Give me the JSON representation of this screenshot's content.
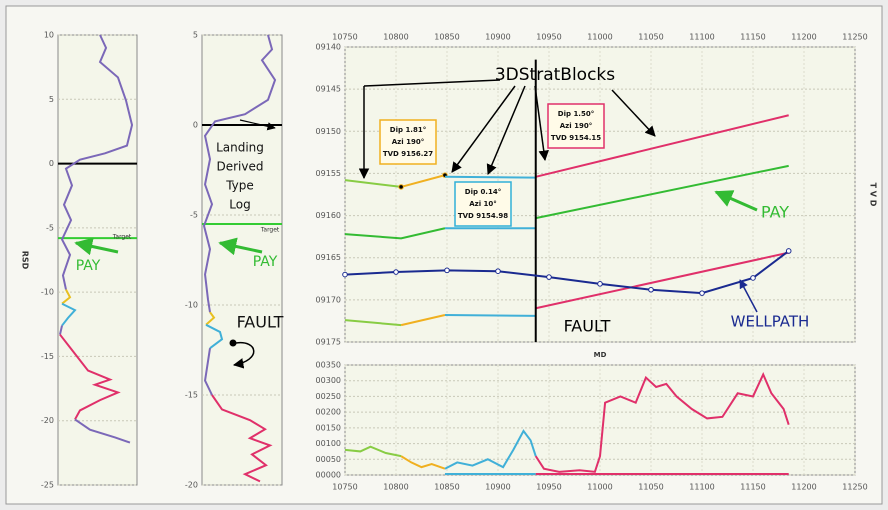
{
  "chart_data": [
    {
      "type": "line",
      "ylabel": "RSD",
      "xlim": [
        0,
        100
      ],
      "ylim": [
        -25,
        10
      ],
      "yticks": [
        10,
        5,
        0,
        -5,
        -10,
        -15,
        -20,
        -25
      ],
      "grid": true,
      "hlines": [
        {
          "value": 0,
          "color": "#000000"
        },
        {
          "value": -5.8,
          "color": "#33cc33"
        }
      ],
      "annotations": [
        {
          "text": "Target",
          "color": "#333333"
        },
        {
          "text": "PAY",
          "color": "#33bb33"
        }
      ],
      "series": [
        {
          "color": "#7b68b8",
          "x": [
            53.2,
            60.8,
            53.2,
            75.9,
            86.1,
            93.7,
            87.3,
            59.5,
            27.8,
            10.1,
            17.7,
            7.6,
            16.5,
            5.1,
            15.2,
            6.3,
            10.1
          ],
          "values": [
            10,
            9.0,
            7.9,
            6.7,
            4.9,
            3.0,
            1.4,
            0.8,
            0.3,
            -0.4,
            -1.7,
            -3.2,
            -4.4,
            -5.9,
            -7.1,
            -8.7,
            -9.8
          ]
        },
        {
          "color": "#e8c020",
          "x": [
            10.1,
            15.2,
            5.1
          ],
          "values": [
            -9.8,
            -10.4,
            -10.9
          ]
        },
        {
          "color": "#40b0d8",
          "x": [
            5.1,
            21.5,
            12.7,
            5.1
          ],
          "values": [
            -10.9,
            -11.4,
            -12.0,
            -12.6
          ]
        },
        {
          "color": "#7b68b8",
          "x": [
            5.1,
            2.5
          ],
          "values": [
            -12.6,
            -13.3
          ]
        },
        {
          "color": "#e0306a",
          "x": [
            2.5,
            17.7,
            38,
            65.8,
            46.8,
            75.9,
            53.2,
            27.8,
            21.5
          ],
          "values": [
            -13.3,
            -14.5,
            -16.1,
            -16.8,
            -17.2,
            -17.8,
            -18.4,
            -19.2,
            -19.9
          ]
        },
        {
          "color": "#7b68b8",
          "x": [
            21.5,
            40.5,
            72.2,
            91.1
          ],
          "values": [
            -19.9,
            -20.7,
            -21.3,
            -21.7
          ]
        }
      ]
    },
    {
      "type": "line",
      "xlim": [
        0,
        100
      ],
      "ylim": [
        -20,
        5
      ],
      "yticks": [
        5,
        0,
        -5,
        -10,
        -15,
        -20
      ],
      "grid": true,
      "hlines": [
        {
          "value": 0,
          "color": "#000000"
        },
        {
          "value": -5.5,
          "color": "#33cc33"
        }
      ],
      "annotations": [
        {
          "text": "Target",
          "color": "#333333"
        },
        {
          "text": "PAY",
          "color": "#33bb33"
        },
        {
          "text": "Landing",
          "color": "#111111"
        },
        {
          "text": "Derived",
          "color": "#111111"
        },
        {
          "text": "Type",
          "color": "#111111"
        },
        {
          "text": "Log",
          "color": "#111111"
        },
        {
          "text": "FAULT",
          "color": "#111111"
        }
      ],
      "series": [
        {
          "color": "#7b68b8",
          "x": [
            82.5,
            87.5,
            75,
            91.3,
            82.5,
            53.8,
            16.3,
            3.8,
            10,
            3.8,
            12.5,
            2.5,
            10,
            3.8,
            7.5,
            10
          ],
          "values": [
            5,
            4.2,
            3.6,
            2.5,
            1.4,
            0.6,
            0.2,
            -0.6,
            -1.9,
            -3.3,
            -4.4,
            -5.6,
            -6.9,
            -8.3,
            -9.7,
            -10.4
          ]
        },
        {
          "color": "#e8c020",
          "x": [
            10,
            15,
            5
          ],
          "values": [
            -10.4,
            -10.7,
            -11.1
          ]
        },
        {
          "color": "#40b0d8",
          "x": [
            5,
            22.5,
            25,
            10
          ],
          "values": [
            -11.1,
            -11.5,
            -11.9,
            -12.4
          ]
        },
        {
          "color": "#7b68b8",
          "x": [
            10,
            3.8,
            12.5
          ],
          "values": [
            -12.4,
            -14.2,
            -15
          ]
        },
        {
          "color": "#e0306a",
          "x": [
            12.5,
            25,
            60,
            78.8,
            60,
            85,
            62.5,
            80,
            53.8,
            72.5
          ],
          "values": [
            -15,
            -15.8,
            -16.4,
            -16.9,
            -17.4,
            -17.8,
            -18.3,
            -18.9,
            -19.4,
            -19.8
          ]
        }
      ]
    },
    {
      "type": "line",
      "ylabel": "T V D",
      "xlabel": "MD",
      "xtick_position": "top",
      "y_inverted": true,
      "grid": true,
      "xlim": [
        10750,
        11250
      ],
      "xticks": [
        10750,
        10800,
        10850,
        10900,
        10950,
        11000,
        11050,
        11100,
        11150,
        11200,
        11250
      ],
      "ylim": [
        9140,
        9175
      ],
      "yticks": [
        {
          "value": 9140,
          "label": "09140"
        },
        {
          "value": 9145,
          "label": "09145"
        },
        {
          "value": 9150,
          "label": "09150"
        },
        {
          "value": 9155,
          "label": "09155"
        },
        {
          "value": 9160,
          "label": "09160"
        },
        {
          "value": 9165,
          "label": "09165"
        },
        {
          "value": 9170,
          "label": "09170"
        },
        {
          "value": 9175,
          "label": "09175"
        }
      ],
      "annotations": [
        {
          "text": "3DStratBlocks",
          "color": "#000000"
        },
        {
          "text": "PAY",
          "color": "#33bb33"
        },
        {
          "text": "FAULT",
          "color": "#000000"
        },
        {
          "text": "WELLPATH",
          "color": "#1a2a90"
        }
      ],
      "boxes": [
        {
          "color": "#f0b020",
          "lines": [
            "Dip 1.81°",
            "Azi 190°",
            "TVD 9156.27"
          ]
        },
        {
          "color": "#30b0d8",
          "lines": [
            "Dip 0.14°",
            "Azi 10°",
            "TVD 9154.98"
          ]
        },
        {
          "color": "#e0306a",
          "lines": [
            "Dip 1.50°",
            "Azi 190°",
            "TVD 9154.15"
          ]
        }
      ],
      "series": [
        {
          "color": "#88cc44",
          "x": [
            10750,
            10805
          ],
          "values": [
            9155.8,
            9156.6
          ]
        },
        {
          "color": "#f0b020",
          "x": [
            10805,
            10848
          ],
          "values": [
            9156.6,
            9155.2
          ],
          "markers": true,
          "marker_color": "#000000"
        },
        {
          "color": "#40b0d8",
          "x": [
            10848,
            10937
          ],
          "values": [
            9155.4,
            9155.5
          ]
        },
        {
          "color": "#e0306a",
          "x": [
            10937,
            11185
          ],
          "values": [
            9155.4,
            9148.1
          ]
        },
        {
          "color": "#33bb33",
          "x": [
            10750,
            10805,
            10848
          ],
          "values": [
            9162.2,
            9162.7,
            9161.5
          ]
        },
        {
          "color": "#40b0d8",
          "x": [
            10848,
            10937
          ],
          "values": [
            9161.5,
            9161.5
          ]
        },
        {
          "color": "#33bb33",
          "x": [
            10937,
            11185
          ],
          "values": [
            9160.3,
            9154.1
          ]
        },
        {
          "color": "#88cc44",
          "x": [
            10750,
            10805
          ],
          "values": [
            9172.4,
            9173
          ]
        },
        {
          "color": "#f0b020",
          "x": [
            10805,
            10848
          ],
          "values": [
            9173,
            9171.8
          ]
        },
        {
          "color": "#40b0d8",
          "x": [
            10848,
            10937
          ],
          "values": [
            9171.8,
            9171.9
          ]
        },
        {
          "color": "#e0306a",
          "x": [
            10937,
            11185
          ],
          "values": [
            9171,
            9164.4
          ]
        },
        {
          "color": "#000000",
          "x": [
            10937,
            10937
          ],
          "values": [
            9141.5,
            9175
          ]
        },
        {
          "color": "#1a2a90",
          "x": [
            10750,
            10800,
            10850,
            10900,
            10950,
            11000,
            11050,
            11100,
            11150,
            11185
          ],
          "values": [
            9167,
            9166.7,
            9166.5,
            9166.6,
            9167.3,
            9168.1,
            9168.8,
            9169.2,
            9167.4,
            9164.2
          ],
          "markers": true,
          "marker_color": "#ffffff"
        }
      ]
    },
    {
      "type": "line",
      "xtick_position": "bottom",
      "grid": true,
      "xlim": [
        10750,
        11250
      ],
      "xticks": [
        10750,
        10800,
        10850,
        10900,
        10950,
        11000,
        11050,
        11100,
        11150,
        11200,
        11250
      ],
      "ylim": [
        0,
        350
      ],
      "yticks": [
        {
          "value": 350,
          "label": "00350"
        },
        {
          "value": 300,
          "label": "00300"
        },
        {
          "value": 250,
          "label": "00250"
        },
        {
          "value": 200,
          "label": "00200"
        },
        {
          "value": 150,
          "label": "00150"
        },
        {
          "value": 100,
          "label": "00100"
        },
        {
          "value": 50,
          "label": "00050"
        },
        {
          "value": 0,
          "label": "00000"
        }
      ],
      "series": [
        {
          "color": "#88cc44",
          "x": [
            10750,
            10765,
            10775,
            10790,
            10805
          ],
          "values": [
            80,
            75,
            90,
            70,
            60
          ]
        },
        {
          "color": "#f0b020",
          "x": [
            10805,
            10815,
            10825,
            10835,
            10848
          ],
          "values": [
            60,
            40,
            25,
            35,
            20
          ]
        },
        {
          "color": "#40b0d8",
          "x": [
            10848,
            10860,
            10875,
            10890,
            10905,
            10915,
            10925,
            10932,
            10937
          ],
          "values": [
            20,
            40,
            30,
            50,
            25,
            80,
            140,
            110,
            60
          ]
        },
        {
          "color": "#e0306a",
          "x": [
            10937,
            10945,
            10960,
            10980,
            10995,
            11000,
            11005,
            11020,
            11035,
            11045,
            11055,
            11065,
            11075,
            11090,
            11105,
            11120,
            11135,
            11150,
            11160,
            11168,
            11180,
            11185
          ],
          "values": [
            60,
            20,
            10,
            15,
            10,
            60,
            230,
            250,
            230,
            310,
            280,
            290,
            250,
            210,
            180,
            185,
            260,
            250,
            320,
            260,
            210,
            160
          ]
        },
        {
          "color": "#40b0d8",
          "x": [
            10848,
            10937
          ],
          "values": [
            3,
            3
          ]
        },
        {
          "color": "#e0306a",
          "x": [
            10937,
            11185
          ],
          "values": [
            3,
            3
          ]
        }
      ]
    }
  ]
}
